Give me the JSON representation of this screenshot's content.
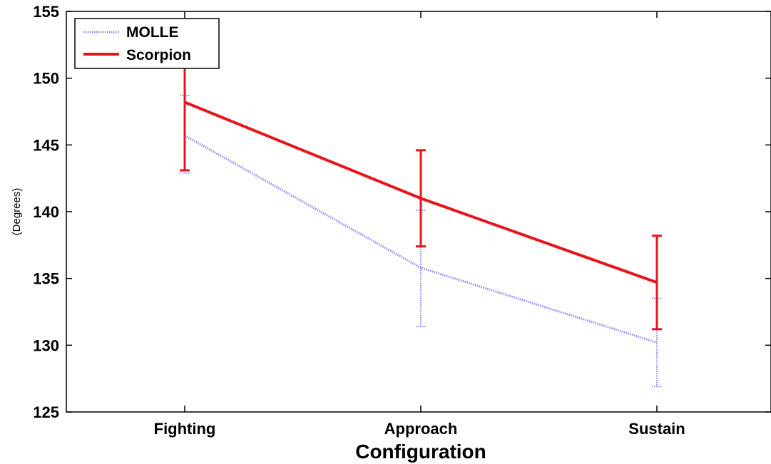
{
  "chart_data": {
    "type": "line",
    "xlabel": "Configuration",
    "ylabel": "(Degrees)",
    "categories": [
      "Fighting",
      "Approach",
      "Sustain"
    ],
    "ylim": [
      125,
      155
    ],
    "yticks": [
      125,
      130,
      135,
      140,
      145,
      150,
      155
    ],
    "grid": false,
    "legend_placement": "top-left",
    "series": [
      {
        "name": "MOLLE",
        "color": "#8c8cf0",
        "style": "dotted",
        "values": [
          145.7,
          135.8,
          130.2
        ],
        "error_low": [
          142.9,
          131.4,
          126.9
        ],
        "error_high": [
          148.7,
          140.1,
          133.5
        ]
      },
      {
        "name": "Scorpion",
        "color": "#e8141c",
        "style": "solid",
        "values": [
          148.2,
          141.0,
          134.7
        ],
        "error_low": [
          143.1,
          137.4,
          131.2
        ],
        "error_high": [
          153.3,
          144.6,
          138.2
        ]
      }
    ]
  }
}
